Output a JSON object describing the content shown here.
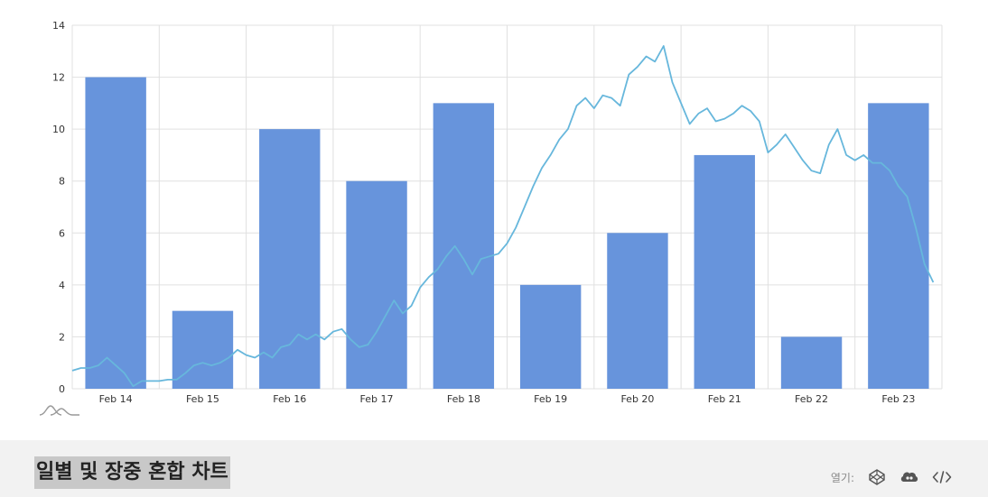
{
  "chart_data": {
    "type": "bar+line",
    "categories": [
      "Feb 14",
      "Feb 15",
      "Feb 16",
      "Feb 17",
      "Feb 18",
      "Feb 19",
      "Feb 20",
      "Feb 21",
      "Feb 22",
      "Feb 23"
    ],
    "ylim": [
      0,
      14
    ],
    "yticks": [
      0,
      2,
      4,
      6,
      8,
      10,
      12,
      14
    ],
    "grid": true,
    "series": [
      {
        "type": "bar",
        "values": [
          12,
          3,
          10,
          8,
          11,
          4,
          6,
          9,
          2,
          11
        ],
        "color": "#6794dc"
      },
      {
        "type": "line",
        "color": "#67b7dc",
        "x": [
          0,
          0.1,
          0.2,
          0.3,
          0.4,
          0.5,
          0.6,
          0.7,
          0.8,
          0.9,
          1.0,
          1.1,
          1.2,
          1.3,
          1.4,
          1.5,
          1.6,
          1.7,
          1.8,
          1.9,
          2.0,
          2.1,
          2.2,
          2.3,
          2.4,
          2.5,
          2.6,
          2.7,
          2.8,
          2.9,
          3.0,
          3.1,
          3.2,
          3.3,
          3.4,
          3.5,
          3.6,
          3.7,
          3.8,
          3.9,
          4.0,
          4.1,
          4.2,
          4.3,
          4.4,
          4.5,
          4.6,
          4.7,
          4.8,
          4.9,
          5.0,
          5.1,
          5.2,
          5.3,
          5.4,
          5.5,
          5.6,
          5.7,
          5.8,
          5.9,
          6.0,
          6.1,
          6.2,
          6.3,
          6.4,
          6.5,
          6.6,
          6.7,
          6.8,
          6.9,
          7.0,
          7.1,
          7.2,
          7.3,
          7.4,
          7.5,
          7.6,
          7.7,
          7.8,
          7.9,
          8.0,
          8.1,
          8.2,
          8.3,
          8.4,
          8.5,
          8.6,
          8.7,
          8.8,
          8.9,
          9.0,
          9.1,
          9.2,
          9.3,
          9.4,
          9.5,
          9.6,
          9.7,
          9.8,
          9.9
        ],
        "y": [
          0.7,
          0.8,
          0.8,
          0.9,
          1.2,
          0.9,
          0.6,
          0.1,
          0.3,
          0.3,
          0.3,
          0.35,
          0.35,
          0.6,
          0.9,
          1.0,
          0.9,
          1.0,
          1.2,
          1.5,
          1.3,
          1.2,
          1.4,
          1.2,
          1.6,
          1.7,
          2.1,
          1.9,
          2.1,
          1.9,
          2.2,
          2.3,
          1.9,
          1.6,
          1.7,
          2.2,
          2.8,
          3.4,
          2.9,
          3.2,
          3.9,
          4.3,
          4.6,
          5.1,
          5.5,
          5.0,
          4.4,
          5.0,
          5.1,
          5.2,
          5.6,
          6.2,
          7.0,
          7.8,
          8.5,
          9.0,
          9.6,
          10.0,
          10.9,
          11.2,
          10.8,
          11.3,
          11.2,
          10.9,
          12.1,
          12.4,
          12.8,
          12.6,
          13.2,
          11.8,
          11.0,
          10.2,
          10.6,
          10.8,
          10.3,
          10.4,
          10.6,
          10.9,
          10.7,
          10.3,
          9.1,
          9.4,
          9.8,
          9.3,
          8.8,
          8.4,
          8.3,
          9.4,
          10.0,
          9.0,
          8.8,
          9.0,
          8.7,
          8.7,
          8.4,
          7.8,
          7.4,
          6.2,
          4.8,
          4.1
        ]
      }
    ]
  },
  "footer": {
    "title": "일별 및 장중 혼합 차트",
    "open_label": "열기:",
    "icons": [
      "codepen-icon",
      "jsfiddle-icon",
      "code-icon"
    ]
  },
  "colors": {
    "bar": "#6794dc",
    "line": "#67b7dc",
    "grid": "#e0e0e0",
    "footer_bg": "#f2f2f2",
    "title_bg": "#c8c8c8"
  }
}
